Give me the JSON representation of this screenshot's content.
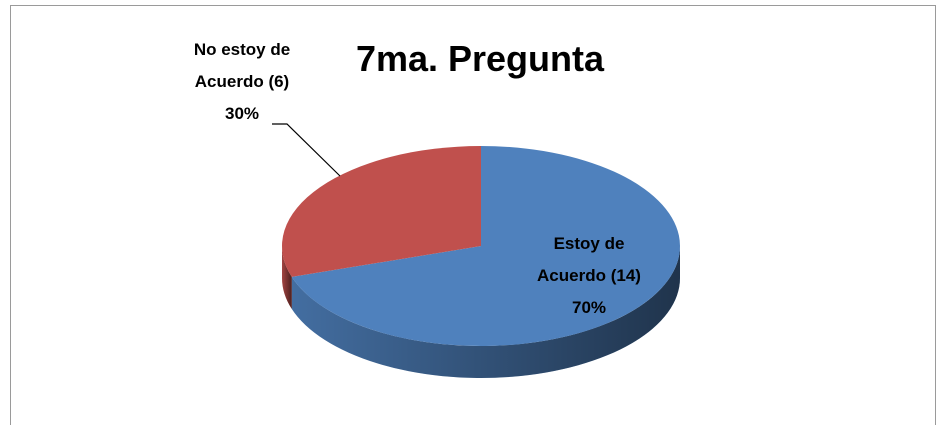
{
  "chart_data": {
    "type": "pie",
    "title": "7ma. Pregunta",
    "categories": [
      "Estoy de Acuerdo (14)",
      "No estoy de Acuerdo (6)"
    ],
    "values": [
      70,
      30
    ],
    "value_labels": [
      "70%",
      "30%"
    ],
    "colors": [
      "#4f81bd",
      "#c0504d"
    ]
  }
}
